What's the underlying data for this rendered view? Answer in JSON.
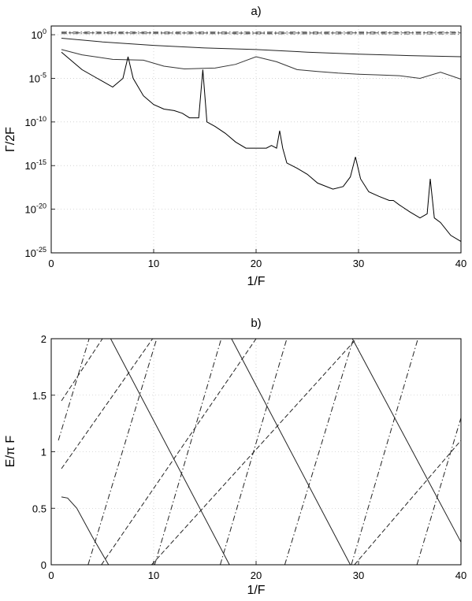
{
  "chart_data": [
    {
      "type": "line",
      "title": "a)",
      "xlabel": "1/F",
      "ylabel": "Γ/2F",
      "xlim": [
        0,
        40
      ],
      "ylim": [
        1e-25,
        10
      ],
      "yscale": "log",
      "grid": true,
      "x_ticks": [
        0,
        10,
        20,
        30,
        40
      ],
      "y_ticks": [
        {
          "base": "10",
          "exp": "0",
          "value": 1
        },
        {
          "base": "10",
          "exp": "-5",
          "value": 1e-05
        },
        {
          "base": "10",
          "exp": "-10",
          "value": 1e-10
        },
        {
          "base": "10",
          "exp": "-15",
          "value": 1e-15
        },
        {
          "base": "10",
          "exp": "-20",
          "value": 1e-20
        },
        {
          "base": "10",
          "exp": "-25",
          "value": 1e-25
        }
      ],
      "series": [
        {
          "color": "#444444",
          "style": "dashdot",
          "x": [
            1,
            10,
            20,
            30,
            40
          ],
          "y": [
            2.0,
            2.0,
            2.0,
            2.0,
            2.0
          ]
        },
        {
          "color": "#555555",
          "style": "dashed",
          "x": [
            1,
            10,
            20,
            30,
            40
          ],
          "y": [
            1.6,
            1.6,
            1.55,
            1.6,
            1.6
          ]
        },
        {
          "color": "#666666",
          "style": "dashdot",
          "x": [
            1,
            10,
            20,
            30,
            40
          ],
          "y": [
            1.3,
            1.3,
            1.25,
            1.25,
            1.2
          ]
        },
        {
          "color": "#222222",
          "style": "solid",
          "x": [
            1,
            5,
            10,
            15,
            20,
            25,
            30,
            35,
            40
          ],
          "y": [
            0.4,
            0.15,
            0.06,
            0.03,
            0.02,
            0.01,
            0.006,
            0.004,
            0.003
          ]
        },
        {
          "color": "#333333",
          "style": "solid",
          "x": [
            1,
            3,
            6,
            9,
            11,
            13,
            16,
            18,
            20,
            22,
            24,
            26,
            28,
            30,
            32,
            34,
            36,
            38,
            40
          ],
          "y": [
            0.02,
            0.005,
            0.0015,
            0.0012,
            0.00025,
            0.00012,
            0.00015,
            0.0004,
            0.003,
            0.0008,
            0.0001,
            6e-05,
            4e-05,
            3e-05,
            2.5e-05,
            2e-05,
            1e-05,
            5e-05,
            8e-06
          ]
        },
        {
          "color": "#000000",
          "style": "solid",
          "x": [
            1,
            3,
            4.5,
            6,
            7,
            7.5,
            8,
            9,
            10,
            11,
            12,
            12.8,
            13.5,
            14.4,
            14.8,
            15.2,
            16,
            17,
            18,
            19,
            20,
            21,
            21.5,
            22,
            22.3,
            22.6,
            23,
            24,
            25,
            26,
            27.5,
            28.5,
            29.2,
            29.7,
            30.2,
            31,
            32,
            33,
            33.4,
            34,
            35,
            36,
            36.7,
            37,
            37.4,
            38,
            39,
            40
          ],
          "y": [
            0.01,
            0.0001,
            1e-05,
            1e-06,
            1e-05,
            0.003,
            1e-05,
            1e-07,
            1e-08,
            3e-09,
            2e-09,
            1e-09,
            3e-10,
            3e-10,
            0.0001,
            1e-10,
            3e-11,
            5e-12,
            5e-13,
            1e-13,
            1e-13,
            1e-13,
            2e-13,
            1e-13,
            1e-11,
            1e-13,
            2e-15,
            5e-16,
            1e-16,
            1e-17,
            2e-18,
            4e-18,
            5e-17,
            1e-14,
            3e-17,
            1e-18,
            3e-19,
            1e-19,
            1e-19,
            3e-20,
            5e-21,
            1e-21,
            3e-21,
            3e-17,
            1e-21,
            3e-22,
            1e-23,
            2e-24
          ]
        }
      ]
    },
    {
      "type": "line",
      "title": "b)",
      "xlabel": "1/F",
      "ylabel": "E/π F",
      "xlim": [
        0,
        40
      ],
      "ylim": [
        0,
        2
      ],
      "grid": true,
      "x_ticks": [
        0,
        10,
        20,
        30,
        40
      ],
      "y_ticks": [
        0,
        0.5,
        1,
        1.5,
        2
      ],
      "y_tick_labels": [
        "0",
        "0.5",
        "1",
        "1.5",
        "2"
      ],
      "segments": [
        {
          "style": "solid",
          "points": [
            [
              1,
              0.6
            ],
            [
              1.6,
              0.59
            ],
            [
              2.5,
              0.5
            ],
            [
              4,
              0.25
            ],
            [
              5.6,
              0
            ]
          ]
        },
        {
          "style": "solid",
          "points": [
            [
              5.8,
              2
            ],
            [
              17.4,
              0
            ]
          ]
        },
        {
          "style": "solid",
          "points": [
            [
              17.6,
              2
            ],
            [
              29.2,
              0
            ]
          ]
        },
        {
          "style": "solid",
          "points": [
            [
              29.4,
              2
            ],
            [
              40,
              0.2
            ]
          ]
        },
        {
          "style": "dashdot",
          "points": [
            [
              0.7,
              1.1
            ],
            [
              3.7,
              2
            ]
          ]
        },
        {
          "style": "dashdot",
          "points": [
            [
              3.6,
              0
            ],
            [
              10.3,
              2
            ]
          ]
        },
        {
          "style": "dashdot",
          "points": [
            [
              10.1,
              0
            ],
            [
              16.6,
              2
            ]
          ]
        },
        {
          "style": "dashdot",
          "points": [
            [
              16.5,
              0
            ],
            [
              23,
              2
            ]
          ]
        },
        {
          "style": "dashdot",
          "points": [
            [
              22.8,
              0
            ],
            [
              29.5,
              2
            ]
          ]
        },
        {
          "style": "dashdot",
          "points": [
            [
              29.3,
              0
            ],
            [
              35.8,
              2
            ]
          ]
        },
        {
          "style": "dashdot",
          "points": [
            [
              35.7,
              0
            ],
            [
              40,
              1.3
            ]
          ]
        },
        {
          "style": "dashed",
          "points": [
            [
              1,
              0.85
            ],
            [
              9.9,
              2
            ]
          ]
        },
        {
          "style": "dashed",
          "points": [
            [
              9.8,
              0
            ],
            [
              29.8,
              2
            ]
          ]
        },
        {
          "style": "dashed",
          "points": [
            [
              29.6,
              0
            ],
            [
              40,
              1.1
            ]
          ]
        },
        {
          "style": "dashed",
          "points": [
            [
              1,
              1.45
            ],
            [
              5,
              2
            ]
          ]
        },
        {
          "style": "dashed",
          "points": [
            [
              4.9,
              0
            ],
            [
              20,
              2
            ]
          ]
        }
      ]
    }
  ]
}
